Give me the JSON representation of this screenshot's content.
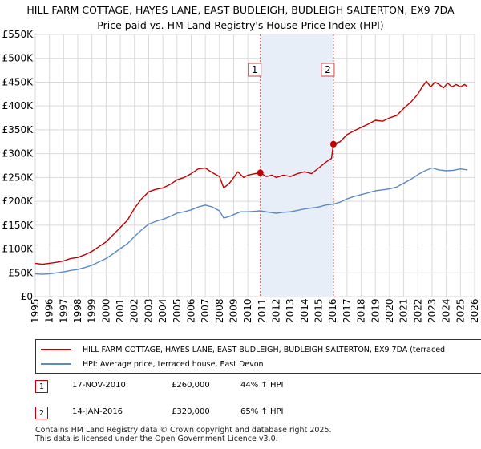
{
  "title_line1": "HILL FARM COTTAGE, HAYES LANE, EAST BUDLEIGH, BUDLEIGH SALTERTON, EX9 7DA",
  "title_line2": "Price paid vs. HM Land Registry's House Price Index (HPI)",
  "colors": {
    "property": "#c00000",
    "hpi": "#5b8ac6",
    "shade": "#e8eef8",
    "grid": "#d9d9d9",
    "marker_line": "#cc4444"
  },
  "chart_data": {
    "type": "line",
    "title": "HILL FARM COTTAGE, HAYES LANE, EAST BUDLEIGH, BUDLEIGH SALTERTON, EX9 7DA - Price paid vs. HM Land Registry's House Price Index (HPI)",
    "xlabel": "",
    "ylabel": "",
    "xlim": [
      1995,
      2026
    ],
    "ylim": [
      0,
      550000
    ],
    "x_ticks": [
      "1995",
      "1996",
      "1997",
      "1998",
      "1999",
      "2000",
      "2001",
      "2002",
      "2003",
      "2004",
      "2005",
      "2006",
      "2007",
      "2008",
      "2009",
      "2010",
      "2011",
      "2012",
      "2013",
      "2014",
      "2015",
      "2016",
      "2017",
      "2018",
      "2019",
      "2020",
      "2021",
      "2022",
      "2023",
      "2024",
      "2025",
      "2026"
    ],
    "y_ticks": [
      {
        "value": 0,
        "label": "£0"
      },
      {
        "value": 50000,
        "label": "£50K"
      },
      {
        "value": 100000,
        "label": "£100K"
      },
      {
        "value": 150000,
        "label": "£150K"
      },
      {
        "value": 200000,
        "label": "£200K"
      },
      {
        "value": 250000,
        "label": "£250K"
      },
      {
        "value": 300000,
        "label": "£300K"
      },
      {
        "value": 350000,
        "label": "£350K"
      },
      {
        "value": 400000,
        "label": "£400K"
      },
      {
        "value": 450000,
        "label": "£450K"
      },
      {
        "value": 500000,
        "label": "£500K"
      },
      {
        "value": 550000,
        "label": "£550K"
      }
    ],
    "grid": true,
    "shaded_period": [
      2010.88,
      2016.04
    ],
    "series": [
      {
        "name": "HILL FARM COTTAGE, HAYES LANE, EAST BUDLEIGH, BUDLEIGH SALTERTON, EX9 7DA (terraced",
        "x": [
          1995,
          1995.5,
          1996,
          1996.5,
          1997,
          1997.5,
          1998,
          1998.5,
          1999,
          1999.5,
          2000,
          2000.5,
          2001,
          2001.5,
          2002,
          2002.5,
          2003,
          2003.5,
          2004,
          2004.5,
          2005,
          2005.5,
          2006,
          2006.5,
          2007,
          2007.5,
          2008,
          2008.3,
          2008.7,
          2009,
          2009.3,
          2009.7,
          2010,
          2010.5,
          2010.88,
          2011.3,
          2011.7,
          2012,
          2012.5,
          2013,
          2013.5,
          2014,
          2014.5,
          2015,
          2015.5,
          2015.9,
          2016.04,
          2016.5,
          2017,
          2017.5,
          2018,
          2018.5,
          2019,
          2019.5,
          2020,
          2020.5,
          2021,
          2021.5,
          2022,
          2022.3,
          2022.6,
          2022.9,
          2023.2,
          2023.5,
          2023.8,
          2024.1,
          2024.4,
          2024.7,
          2025,
          2025.3,
          2025.5
        ],
        "y": [
          70000,
          68000,
          70000,
          72000,
          75000,
          80000,
          82000,
          88000,
          95000,
          105000,
          115000,
          130000,
          145000,
          160000,
          185000,
          205000,
          220000,
          225000,
          228000,
          235000,
          245000,
          250000,
          258000,
          268000,
          270000,
          260000,
          252000,
          228000,
          238000,
          250000,
          262000,
          250000,
          255000,
          258000,
          260000,
          252000,
          255000,
          250000,
          255000,
          252000,
          258000,
          262000,
          258000,
          270000,
          282000,
          290000,
          320000,
          325000,
          340000,
          348000,
          355000,
          362000,
          370000,
          368000,
          375000,
          380000,
          395000,
          408000,
          425000,
          440000,
          452000,
          440000,
          450000,
          445000,
          438000,
          448000,
          440000,
          445000,
          440000,
          445000,
          440000
        ]
      },
      {
        "name": "HPI: Average price, terraced house, East Devon",
        "x": [
          1995,
          1995.5,
          1996,
          1996.5,
          1997,
          1997.5,
          1998,
          1998.5,
          1999,
          1999.5,
          2000,
          2000.5,
          2001,
          2001.5,
          2002,
          2002.5,
          2003,
          2003.5,
          2004,
          2004.5,
          2005,
          2005.5,
          2006,
          2006.5,
          2007,
          2007.5,
          2008,
          2008.3,
          2008.7,
          2009,
          2009.5,
          2010,
          2010.5,
          2010.88,
          2011.5,
          2012,
          2012.5,
          2013,
          2013.5,
          2014,
          2014.5,
          2015,
          2015.5,
          2016,
          2016.5,
          2017,
          2017.5,
          2018,
          2018.5,
          2019,
          2019.5,
          2020,
          2020.5,
          2021,
          2021.5,
          2022,
          2022.5,
          2023,
          2023.5,
          2024,
          2024.5,
          2025,
          2025.5
        ],
        "y": [
          48000,
          47000,
          48000,
          50000,
          52000,
          55000,
          57000,
          61000,
          66000,
          73000,
          80000,
          90000,
          101000,
          111000,
          126000,
          140000,
          152000,
          158000,
          162000,
          168000,
          175000,
          178000,
          182000,
          188000,
          192000,
          188000,
          180000,
          165000,
          168000,
          172000,
          178000,
          178000,
          179000,
          180000,
          177000,
          175000,
          177000,
          178000,
          181000,
          184000,
          186000,
          188000,
          192000,
          194000,
          198000,
          205000,
          210000,
          214000,
          218000,
          222000,
          224000,
          226000,
          230000,
          238000,
          246000,
          256000,
          264000,
          270000,
          266000,
          264000,
          265000,
          268000,
          266000
        ]
      }
    ],
    "annotations": [
      {
        "id": "1",
        "x": 2010.88,
        "y": 260000
      },
      {
        "id": "2",
        "x": 2016.04,
        "y": 320000
      }
    ]
  },
  "legend": {
    "property": "HILL FARM COTTAGE, HAYES LANE, EAST BUDLEIGH, BUDLEIGH SALTERTON, EX9 7DA (terraced",
    "hpi": "HPI: Average price, terraced house, East Devon"
  },
  "transactions": [
    {
      "num": "1",
      "date": "17-NOV-2010",
      "price": "£260,000",
      "hpi": "44% ↑ HPI"
    },
    {
      "num": "2",
      "date": "14-JAN-2016",
      "price": "£320,000",
      "hpi": "65% ↑ HPI"
    }
  ],
  "footer": {
    "line1": "Contains HM Land Registry data © Crown copyright and database right 2025.",
    "line2": "This data is licensed under the Open Government Licence v3.0."
  }
}
